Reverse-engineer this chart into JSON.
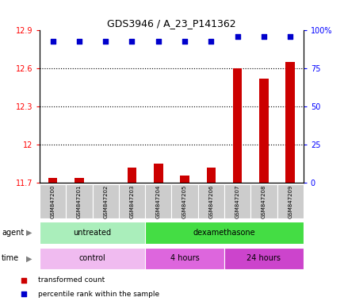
{
  "title": "GDS3946 / A_23_P141362",
  "samples": [
    "GSM847200",
    "GSM847201",
    "GSM847202",
    "GSM847203",
    "GSM847204",
    "GSM847205",
    "GSM847206",
    "GSM847207",
    "GSM847208",
    "GSM847209"
  ],
  "bar_values": [
    11.74,
    11.74,
    11.7,
    11.82,
    11.85,
    11.76,
    11.82,
    12.6,
    12.52,
    12.65
  ],
  "percentile_values": [
    93,
    93,
    93,
    93,
    93,
    93,
    93,
    96,
    96,
    96
  ],
  "ylim_left": [
    11.7,
    12.9
  ],
  "ylim_right": [
    0,
    100
  ],
  "yticks_left": [
    11.7,
    12.0,
    12.3,
    12.6,
    12.9
  ],
  "yticks_right": [
    0,
    25,
    50,
    75,
    100
  ],
  "ytick_labels_left": [
    "11.7",
    "12",
    "12.3",
    "12.6",
    "12.9"
  ],
  "ytick_labels_right": [
    "0",
    "25",
    "50",
    "75",
    "100%"
  ],
  "bar_color": "#cc0000",
  "dot_color": "#0000cc",
  "agent_groups": [
    {
      "label": "untreated",
      "start": 0,
      "end": 4,
      "color": "#aaeebb"
    },
    {
      "label": "dexamethasone",
      "start": 4,
      "end": 10,
      "color": "#44dd44"
    }
  ],
  "time_groups": [
    {
      "label": "control",
      "start": 0,
      "end": 4,
      "color": "#f0bbf0"
    },
    {
      "label": "4 hours",
      "start": 4,
      "end": 7,
      "color": "#dd66dd"
    },
    {
      "label": "24 hours",
      "start": 7,
      "end": 10,
      "color": "#cc44cc"
    }
  ],
  "legend_items": [
    {
      "label": "transformed count",
      "color": "#cc0000",
      "marker": "s"
    },
    {
      "label": "percentile rank within the sample",
      "color": "#0000cc",
      "marker": "s"
    }
  ],
  "background_color": "#ffffff",
  "sample_box_color": "#cccccc",
  "hgrid_lines": [
    12.0,
    12.3,
    12.6
  ],
  "bar_width": 0.35,
  "dot_size": 20
}
